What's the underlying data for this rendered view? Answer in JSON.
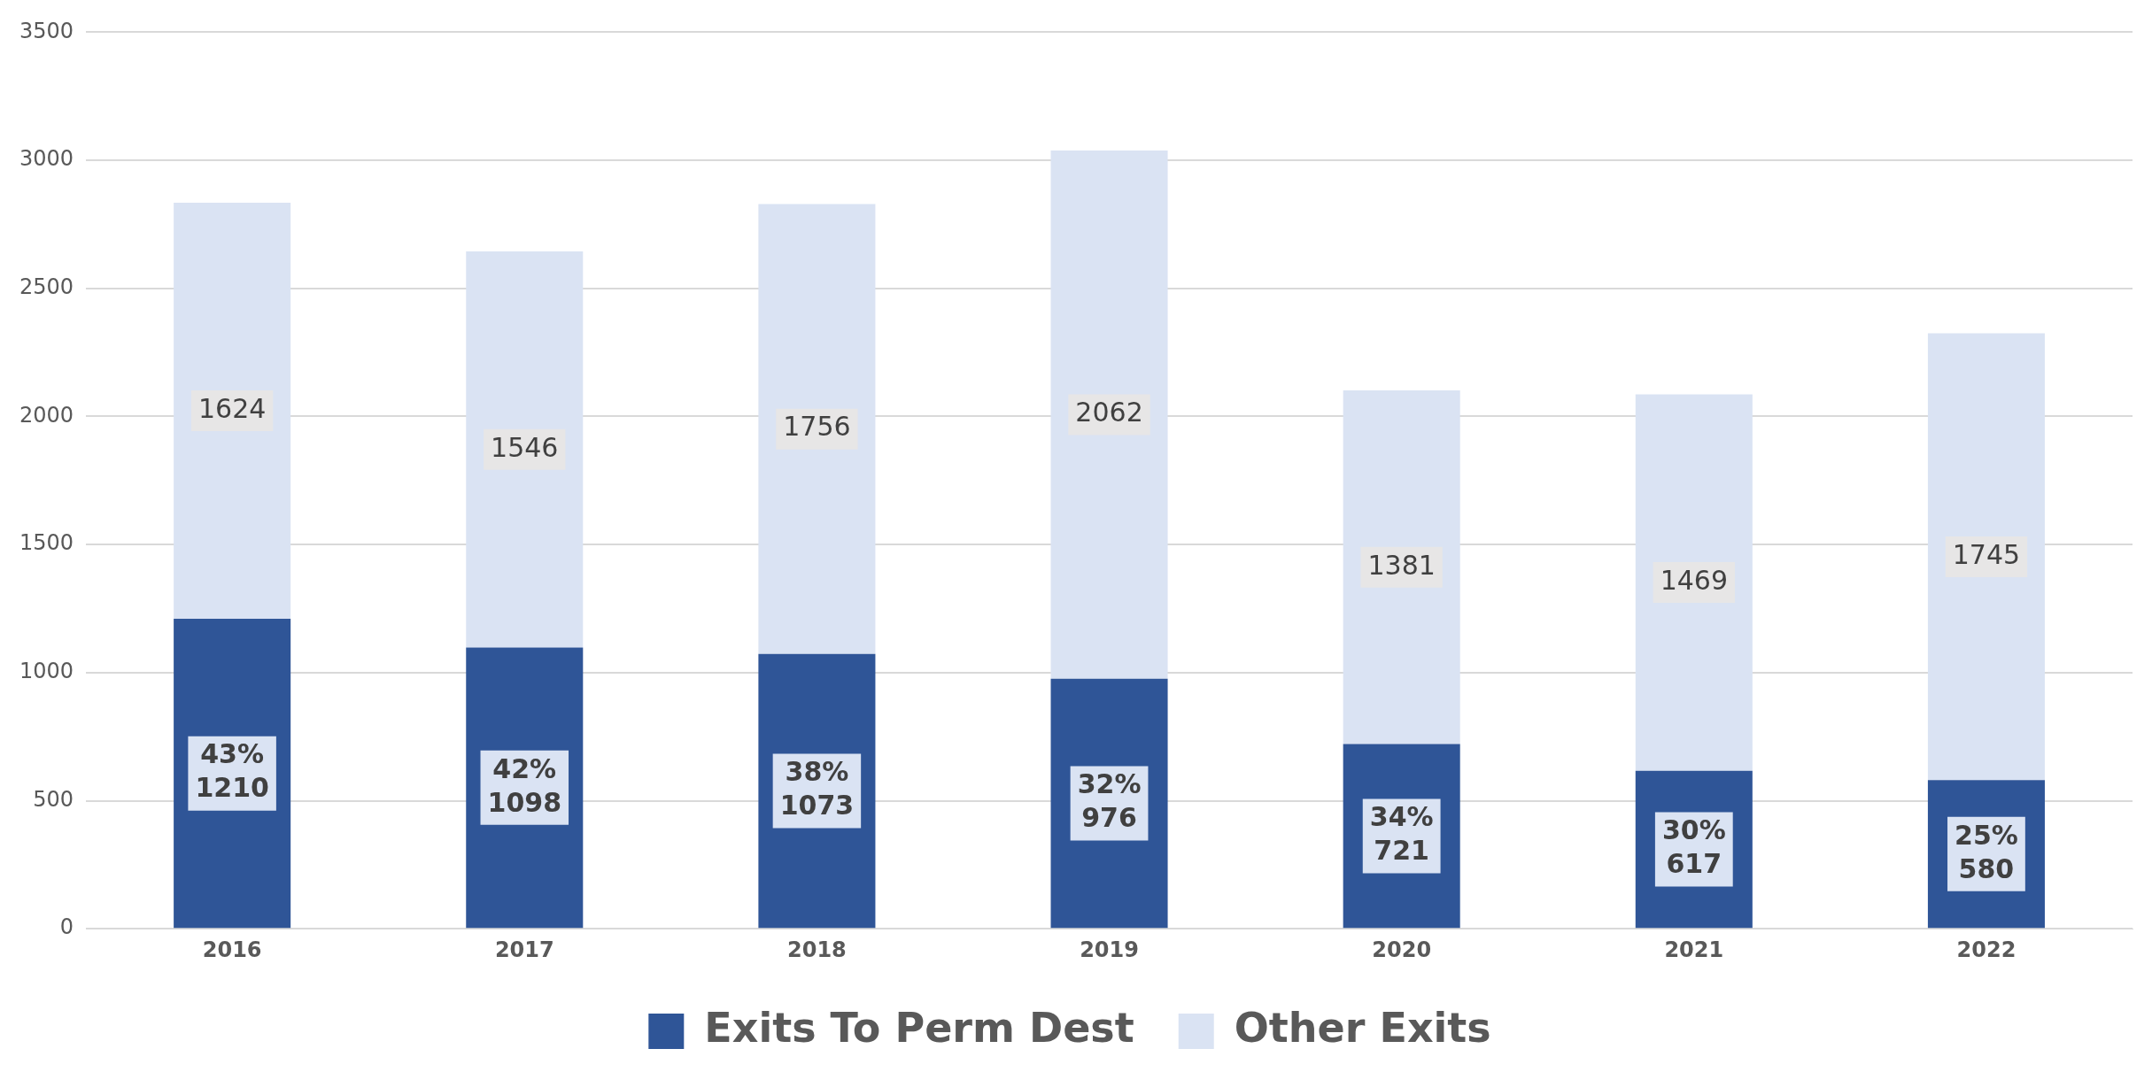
{
  "chart_data": {
    "type": "bar",
    "stacked": true,
    "categories": [
      "2016",
      "2017",
      "2018",
      "2019",
      "2020",
      "2021",
      "2022"
    ],
    "series": [
      {
        "name": "Exits To Perm Dest",
        "color": "#2f5597",
        "values": [
          1210,
          1098,
          1073,
          976,
          721,
          617,
          580
        ],
        "value_labels": [
          "43%\n1210",
          "42%\n1098",
          "38%\n1073",
          "32%\n976",
          "34%\n721",
          "30%\n617",
          "25%\n580"
        ]
      },
      {
        "name": "Other Exits",
        "color": "#dae3f3",
        "values": [
          1624,
          1546,
          1756,
          2062,
          1381,
          1469,
          1745
        ],
        "value_labels": [
          "1624",
          "1546",
          "1756",
          "2062",
          "1381",
          "1469",
          "1745"
        ]
      }
    ],
    "ylim": [
      0,
      3500
    ],
    "yticks": [
      0,
      500,
      1000,
      1500,
      2000,
      2500,
      3000,
      3500
    ],
    "grid": "y",
    "legend": "bottom"
  }
}
